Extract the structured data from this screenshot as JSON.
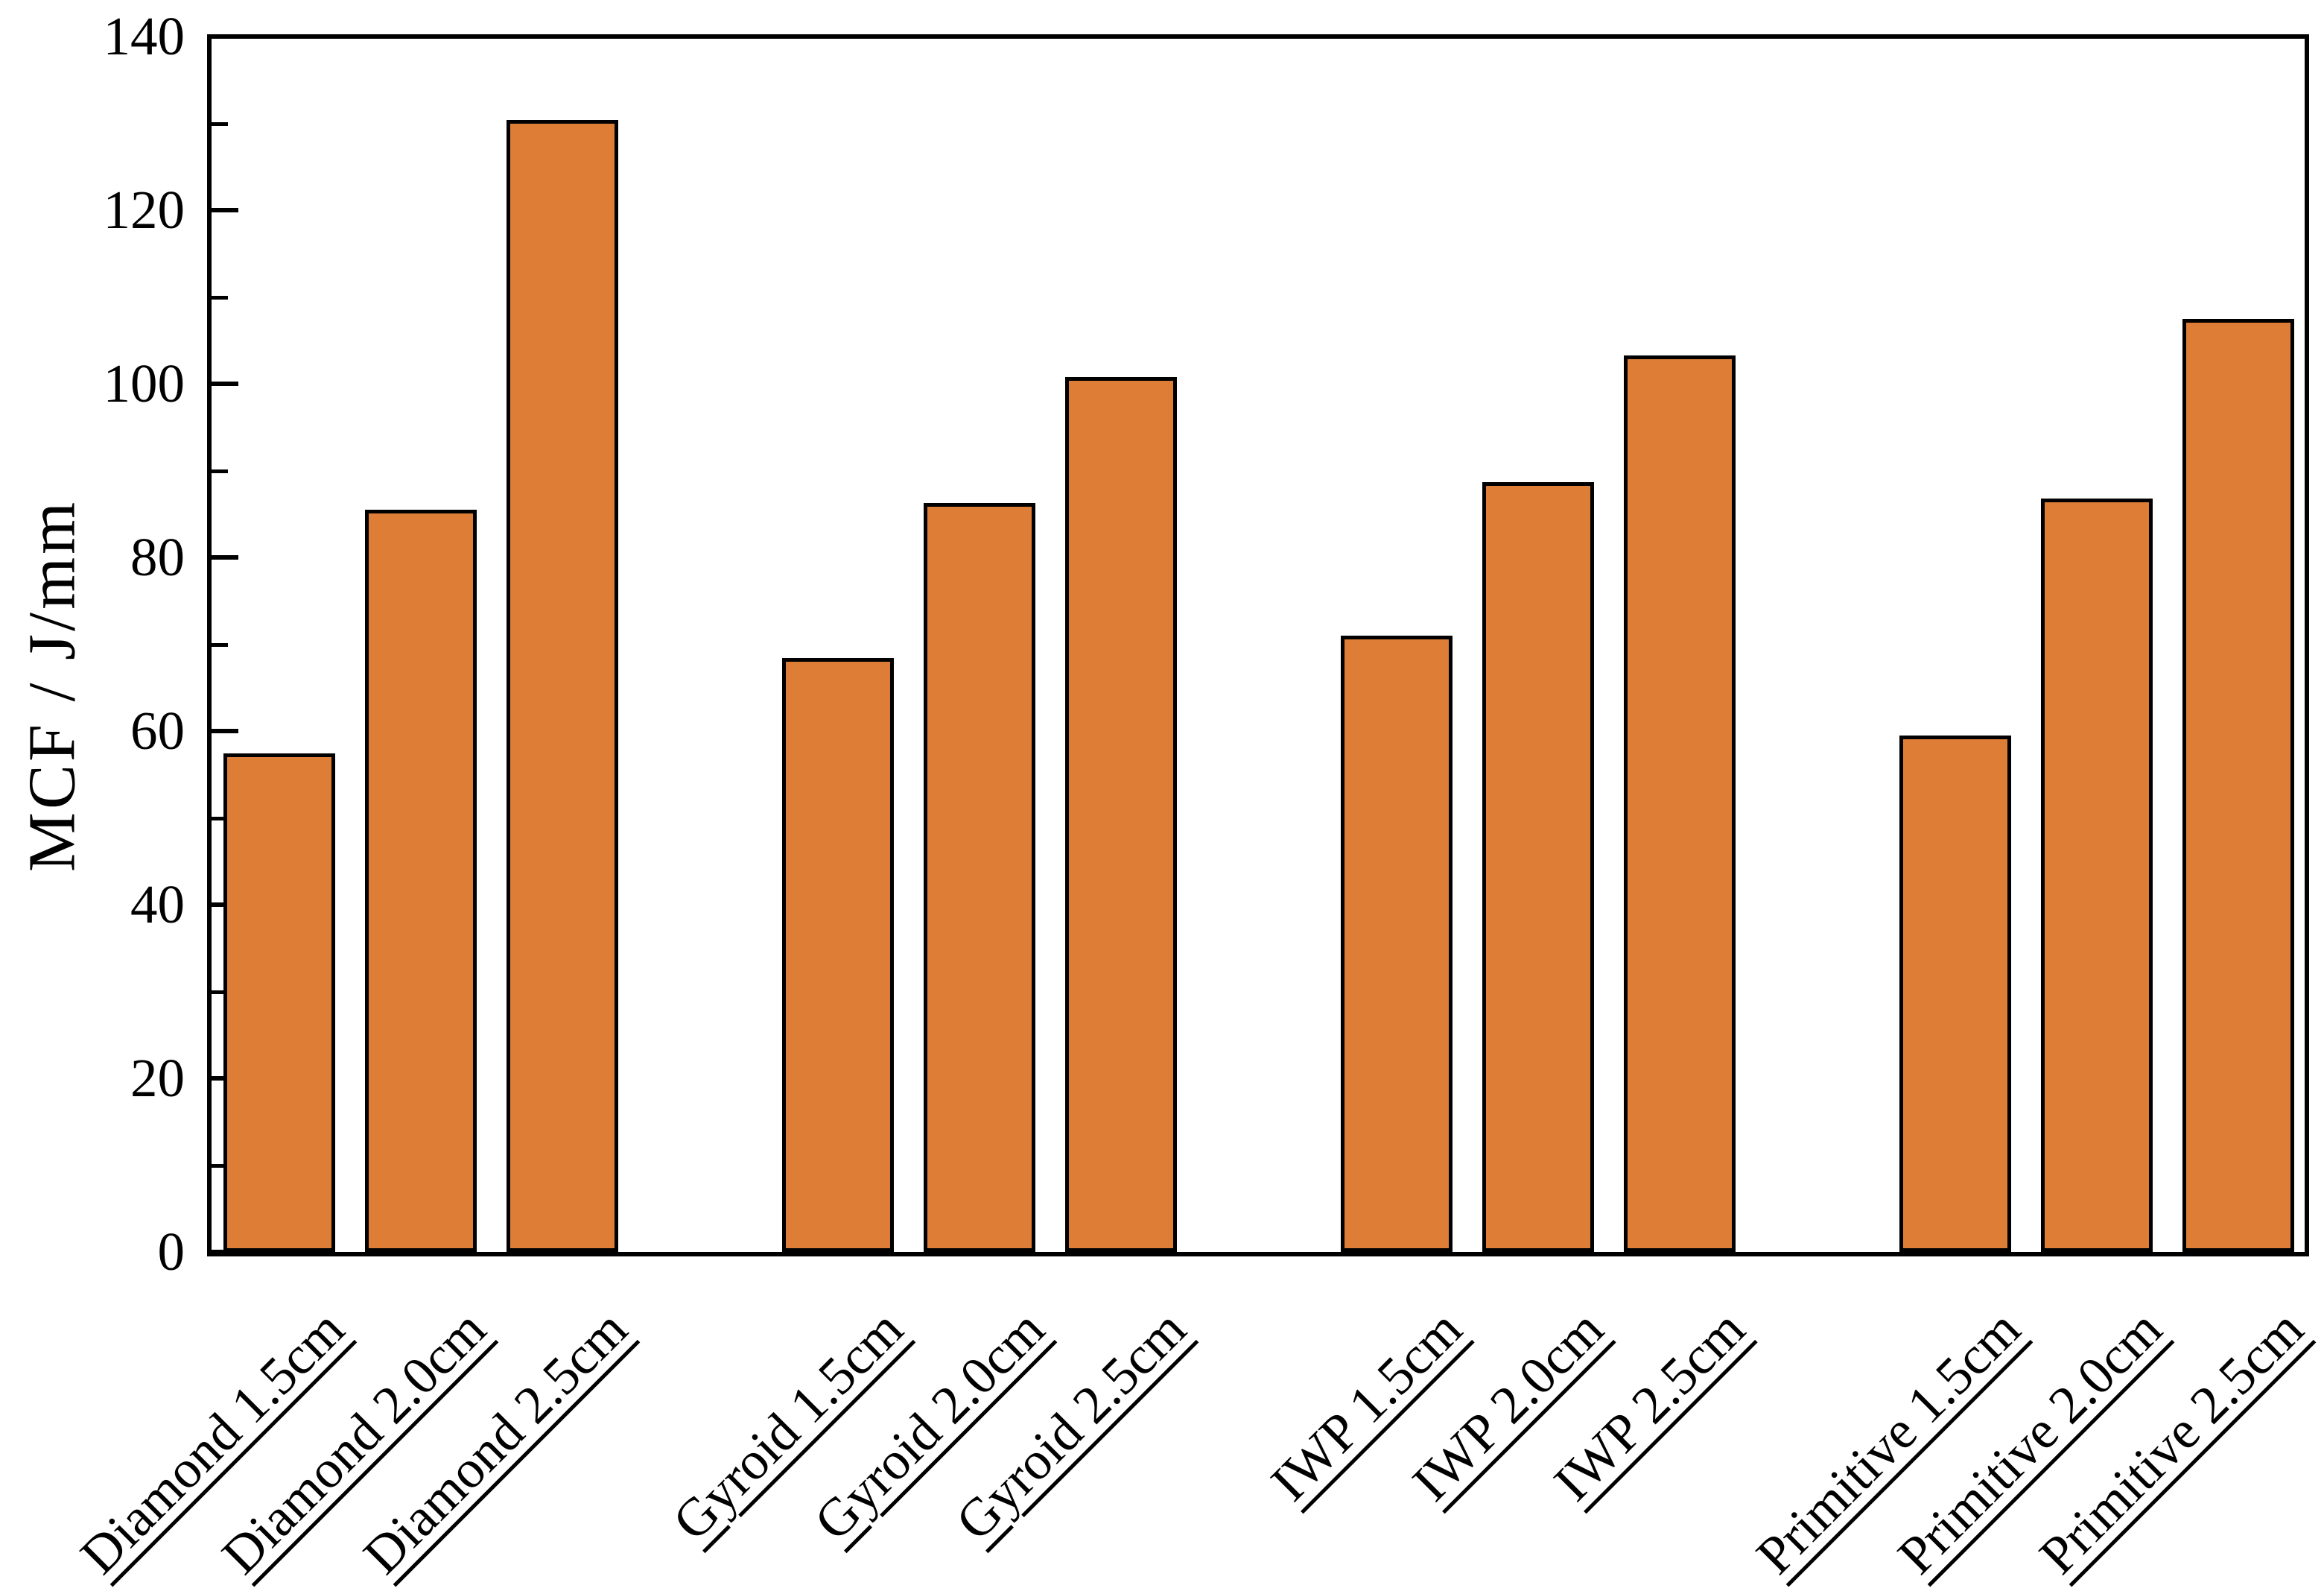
{
  "chart_data": {
    "type": "bar",
    "title": "",
    "xlabel": "",
    "ylabel": "MCF / J/mm",
    "ylim": [
      0,
      140
    ],
    "yticks_major": [
      0,
      20,
      40,
      60,
      80,
      100,
      120,
      140
    ],
    "yticks_minor": [
      10,
      30,
      50,
      70,
      90,
      110,
      130
    ],
    "grid": false,
    "legend_position": "none",
    "categories": [
      "Diamond 1.5cm",
      "Diamond 2.0cm",
      "Diamond 2.5cm",
      "Gyroid 1.5cm",
      "Gyroid 2.0cm",
      "Gyroid 2.5cm",
      "IWP 1.5cm",
      "IWP 2.0cm",
      "IWP 2.5cm",
      "Primitive 1.5cm",
      "Primitive 2.0cm",
      "Primitive 2.5cm"
    ],
    "values": [
      57.4,
      85.5,
      130.4,
      68.4,
      86.3,
      100.8,
      71.0,
      88.7,
      103.3,
      59.5,
      86.8,
      107.5
    ],
    "series_name": "MCF",
    "groups": [
      "Diamond",
      "Gyroid",
      "IWP",
      "Primitive"
    ],
    "group_size": 3,
    "bar_color": "#DE7E36",
    "bar_edge_color": "#000000",
    "axis_color": "#000000",
    "background_color": "#FFFFFF",
    "tick_direction": "in"
  }
}
